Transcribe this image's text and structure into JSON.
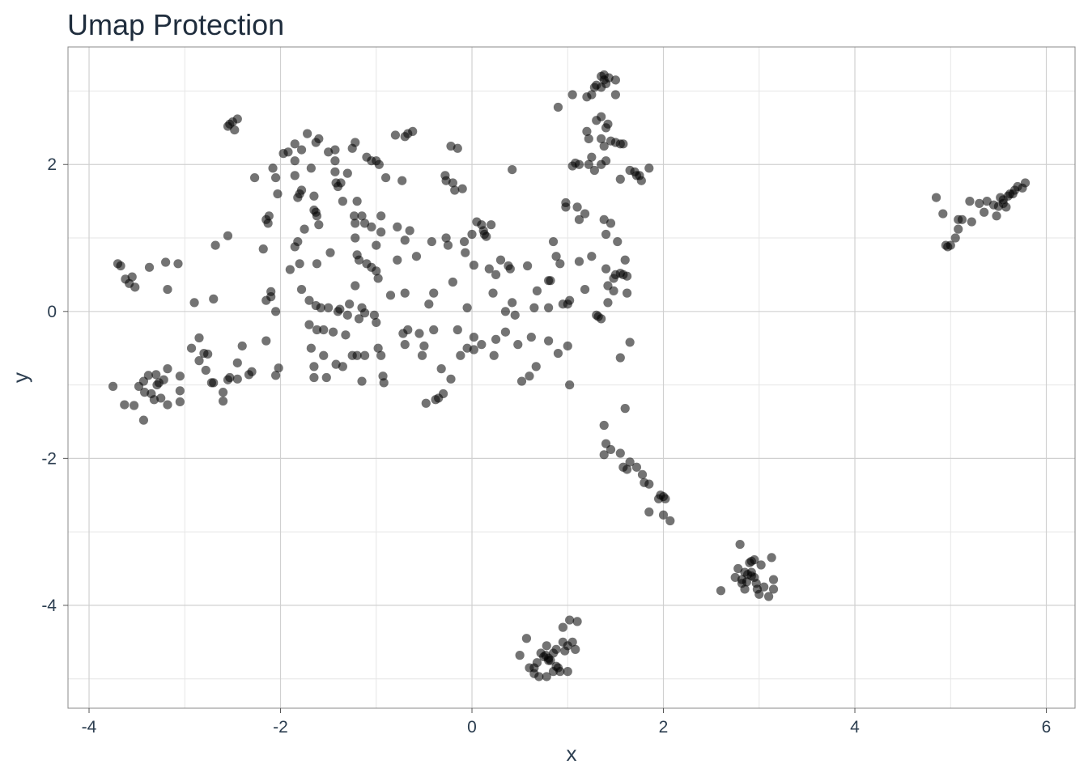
{
  "chart_data": {
    "type": "scatter",
    "title": "Umap Protection",
    "xlabel": "x",
    "ylabel": "y",
    "xlim": [
      -4.22,
      6.3
    ],
    "ylim": [
      -5.4,
      3.6
    ],
    "xticks": [
      -4,
      -2,
      0,
      2,
      4,
      6
    ],
    "yticks": [
      -4,
      -2,
      0,
      2
    ],
    "grid": true,
    "point_color": "#000000",
    "point_opacity": 0.55,
    "points": [
      [
        -2.53,
        2.55
      ],
      [
        -2.5,
        2.58
      ],
      [
        -2.45,
        2.62
      ],
      [
        -2.48,
        2.47
      ],
      [
        -2.55,
        2.52
      ],
      [
        -3.7,
        0.65
      ],
      [
        -3.67,
        0.62
      ],
      [
        -3.62,
        0.44
      ],
      [
        -3.55,
        0.47
      ],
      [
        -3.58,
        0.38
      ],
      [
        -3.52,
        0.33
      ],
      [
        -3.37,
        0.6
      ],
      [
        -3.2,
        0.67
      ],
      [
        -3.07,
        0.65
      ],
      [
        -3.18,
        0.3
      ],
      [
        -3.75,
        -1.02
      ],
      [
        -3.63,
        -1.27
      ],
      [
        -3.53,
        -1.28
      ],
      [
        -3.48,
        -1.02
      ],
      [
        -3.43,
        -0.95
      ],
      [
        -3.42,
        -1.1
      ],
      [
        -3.35,
        -1.12
      ],
      [
        -3.32,
        -1.2
      ],
      [
        -3.3,
        -0.86
      ],
      [
        -3.38,
        -0.87
      ],
      [
        -3.25,
        -1.18
      ],
      [
        -3.22,
        -0.93
      ],
      [
        -3.18,
        -0.78
      ],
      [
        -3.18,
        -1.27
      ],
      [
        -3.05,
        -1.08
      ],
      [
        -3.05,
        -1.23
      ],
      [
        -3.05,
        -0.88
      ],
      [
        -3.43,
        -1.48
      ],
      [
        -3.27,
        -0.97
      ],
      [
        -3.29,
        -1.0
      ],
      [
        -2.93,
        -0.5
      ],
      [
        -2.9,
        0.12
      ],
      [
        -2.85,
        -0.36
      ],
      [
        -2.85,
        -0.67
      ],
      [
        -2.8,
        -0.57
      ],
      [
        -2.76,
        -0.58
      ],
      [
        -2.72,
        -0.97
      ],
      [
        -2.7,
        0.17
      ],
      [
        -2.68,
        0.9
      ],
      [
        -2.7,
        -0.97
      ],
      [
        -2.78,
        -0.8
      ],
      [
        -2.6,
        -1.1
      ],
      [
        -2.6,
        -1.22
      ],
      [
        -2.55,
        1.03
      ],
      [
        -2.53,
        -0.9
      ],
      [
        -2.45,
        -0.92
      ],
      [
        -2.45,
        -0.7
      ],
      [
        -2.4,
        -0.47
      ],
      [
        -2.33,
        -0.86
      ],
      [
        -2.3,
        -0.82
      ],
      [
        -2.55,
        -0.93
      ],
      [
        -2.27,
        1.82
      ],
      [
        -2.18,
        0.85
      ],
      [
        -2.15,
        1.25
      ],
      [
        -2.13,
        1.2
      ],
      [
        -2.12,
        1.3
      ],
      [
        -2.1,
        0.27
      ],
      [
        -2.1,
        0.2
      ],
      [
        -2.15,
        0.15
      ],
      [
        -2.15,
        -0.4
      ],
      [
        -2.05,
        -0.87
      ],
      [
        -2.05,
        0.0
      ],
      [
        -2.02,
        -0.77
      ],
      [
        -2.03,
        1.6
      ],
      [
        -2.05,
        1.82
      ],
      [
        -2.08,
        1.95
      ],
      [
        -1.97,
        2.15
      ],
      [
        -1.92,
        2.17
      ],
      [
        -1.85,
        2.28
      ],
      [
        -1.85,
        2.05
      ],
      [
        -1.85,
        1.85
      ],
      [
        -1.82,
        1.55
      ],
      [
        -1.8,
        1.6
      ],
      [
        -1.78,
        1.65
      ],
      [
        -1.82,
        0.95
      ],
      [
        -1.85,
        0.88
      ],
      [
        -1.75,
        1.12
      ],
      [
        -1.8,
        0.65
      ],
      [
        -1.9,
        0.57
      ],
      [
        -1.78,
        0.3
      ],
      [
        -1.78,
        2.2
      ],
      [
        -1.72,
        2.42
      ],
      [
        -1.68,
        1.95
      ],
      [
        -1.65,
        1.57
      ],
      [
        -1.65,
        1.38
      ],
      [
        -1.62,
        1.3
      ],
      [
        -1.63,
        1.35
      ],
      [
        -1.6,
        1.18
      ],
      [
        -1.62,
        0.65
      ],
      [
        -1.7,
        0.15
      ],
      [
        -1.63,
        0.08
      ],
      [
        -1.58,
        0.05
      ],
      [
        -1.7,
        -0.18
      ],
      [
        -1.62,
        -0.25
      ],
      [
        -1.55,
        -0.25
      ],
      [
        -1.68,
        -0.5
      ],
      [
        -1.65,
        -0.75
      ],
      [
        -1.65,
        -0.9
      ],
      [
        -1.55,
        -0.6
      ],
      [
        -1.52,
        -0.9
      ],
      [
        -1.6,
        2.35
      ],
      [
        -1.63,
        2.3
      ],
      [
        -1.5,
        2.17
      ],
      [
        -1.43,
        2.2
      ],
      [
        -1.43,
        2.05
      ],
      [
        -1.43,
        1.9
      ],
      [
        -1.42,
        1.75
      ],
      [
        -1.4,
        1.7
      ],
      [
        -1.37,
        1.75
      ],
      [
        -1.35,
        1.5
      ],
      [
        -1.3,
        1.88
      ],
      [
        -1.48,
        0.8
      ],
      [
        -1.5,
        0.05
      ],
      [
        -1.45,
        -0.28
      ],
      [
        -1.42,
        -0.72
      ],
      [
        -1.38,
        0.03
      ],
      [
        -1.4,
        0.0
      ],
      [
        -1.35,
        -0.75
      ],
      [
        -1.32,
        -0.32
      ],
      [
        -1.3,
        -0.05
      ],
      [
        -1.28,
        0.1
      ],
      [
        -1.25,
        2.22
      ],
      [
        -1.22,
        2.3
      ],
      [
        -1.23,
        1.3
      ],
      [
        -1.22,
        1.2
      ],
      [
        -1.2,
        1.5
      ],
      [
        -1.22,
        1.0
      ],
      [
        -1.2,
        0.77
      ],
      [
        -1.18,
        0.7
      ],
      [
        -1.22,
        0.35
      ],
      [
        -1.2,
        -0.6
      ],
      [
        -1.25,
        -0.6
      ],
      [
        -1.18,
        -0.1
      ],
      [
        -1.15,
        0.05
      ],
      [
        -1.15,
        1.3
      ],
      [
        -1.12,
        1.2
      ],
      [
        -1.1,
        2.1
      ],
      [
        -1.05,
        2.05
      ],
      [
        -1.1,
        0.65
      ],
      [
        -1.05,
        0.6
      ],
      [
        -1.12,
        -0.02
      ],
      [
        -1.12,
        -0.6
      ],
      [
        -1.15,
        -0.95
      ],
      [
        -1.0,
        2.05
      ],
      [
        -0.97,
        2.0
      ],
      [
        -0.9,
        1.82
      ],
      [
        -1.05,
        1.15
      ],
      [
        -0.95,
        1.08
      ],
      [
        -1.0,
        0.9
      ],
      [
        -1.0,
        0.55
      ],
      [
        -0.98,
        0.45
      ],
      [
        -1.02,
        -0.05
      ],
      [
        -1.0,
        -0.15
      ],
      [
        -0.98,
        -0.5
      ],
      [
        -0.95,
        -0.6
      ],
      [
        -0.93,
        -0.88
      ],
      [
        -0.92,
        -0.97
      ],
      [
        -0.95,
        1.3
      ],
      [
        -0.8,
        2.4
      ],
      [
        -0.78,
        1.15
      ],
      [
        -0.78,
        0.7
      ],
      [
        -0.85,
        0.22
      ],
      [
        -0.7,
        2.38
      ],
      [
        -0.67,
        2.42
      ],
      [
        -0.62,
        2.45
      ],
      [
        -0.73,
        1.78
      ],
      [
        -0.7,
        0.97
      ],
      [
        -0.7,
        0.25
      ],
      [
        -0.67,
        -0.25
      ],
      [
        -0.72,
        -0.3
      ],
      [
        -0.7,
        -0.45
      ],
      [
        -0.65,
        1.1
      ],
      [
        -0.58,
        0.75
      ],
      [
        -0.55,
        -0.3
      ],
      [
        -0.52,
        -0.6
      ],
      [
        -0.5,
        -0.47
      ],
      [
        -0.48,
        -1.25
      ],
      [
        -0.45,
        0.1
      ],
      [
        -0.42,
        0.95
      ],
      [
        -0.4,
        0.25
      ],
      [
        -0.4,
        -0.25
      ],
      [
        -0.38,
        -1.2
      ],
      [
        -0.35,
        -1.18
      ],
      [
        -0.32,
        -0.78
      ],
      [
        -0.3,
        -1.12
      ],
      [
        -0.28,
        1.85
      ],
      [
        -0.27,
        1.78
      ],
      [
        -0.27,
        1.0
      ],
      [
        -0.25,
        0.9
      ],
      [
        -0.22,
        2.25
      ],
      [
        -0.2,
        1.75
      ],
      [
        -0.18,
        1.65
      ],
      [
        -0.15,
        2.22
      ],
      [
        -0.2,
        0.4
      ],
      [
        -0.22,
        -0.92
      ],
      [
        -0.15,
        -0.25
      ],
      [
        -0.12,
        -0.6
      ],
      [
        -0.05,
        0.05
      ],
      [
        -0.07,
        0.8
      ],
      [
        -0.08,
        0.95
      ],
      [
        -0.05,
        -0.5
      ],
      [
        -0.1,
        1.67
      ],
      [
        0.0,
        1.05
      ],
      [
        0.02,
        0.63
      ],
      [
        0.02,
        -0.35
      ],
      [
        0.02,
        -0.52
      ],
      [
        0.05,
        1.22
      ],
      [
        0.1,
        1.18
      ],
      [
        0.1,
        -0.45
      ],
      [
        0.13,
        1.05
      ],
      [
        0.15,
        1.02
      ],
      [
        0.12,
        1.1
      ],
      [
        0.18,
        0.58
      ],
      [
        0.2,
        1.18
      ],
      [
        0.22,
        0.25
      ],
      [
        0.25,
        0.5
      ],
      [
        0.23,
        -0.6
      ],
      [
        0.25,
        -0.38
      ],
      [
        0.3,
        0.7
      ],
      [
        0.35,
        0.0
      ],
      [
        0.35,
        -0.28
      ],
      [
        0.38,
        0.62
      ],
      [
        0.4,
        0.58
      ],
      [
        0.42,
        0.12
      ],
      [
        0.42,
        1.93
      ],
      [
        0.45,
        -0.05
      ],
      [
        0.48,
        -0.45
      ],
      [
        0.52,
        -0.95
      ],
      [
        0.58,
        0.62
      ],
      [
        0.6,
        -0.88
      ],
      [
        0.62,
        -0.35
      ],
      [
        0.65,
        0.05
      ],
      [
        0.67,
        -0.75
      ],
      [
        0.68,
        0.28
      ],
      [
        0.8,
        0.42
      ],
      [
        0.82,
        0.42
      ],
      [
        0.8,
        0.05
      ],
      [
        0.8,
        -0.4
      ],
      [
        0.85,
        0.95
      ],
      [
        0.88,
        0.75
      ],
      [
        0.9,
        -0.57
      ],
      [
        0.92,
        0.65
      ],
      [
        0.95,
        0.1
      ],
      [
        0.98,
        1.42
      ],
      [
        0.98,
        1.48
      ],
      [
        1.0,
        0.1
      ],
      [
        1.02,
        0.15
      ],
      [
        1.0,
        -0.47
      ],
      [
        1.02,
        -1.0
      ],
      [
        1.05,
        1.98
      ],
      [
        1.08,
        2.02
      ],
      [
        1.1,
        1.42
      ],
      [
        1.12,
        0.68
      ],
      [
        1.12,
        2.0
      ],
      [
        1.12,
        1.25
      ],
      [
        1.18,
        1.33
      ],
      [
        1.18,
        0.3
      ],
      [
        1.2,
        2.45
      ],
      [
        1.22,
        2.0
      ],
      [
        1.25,
        2.1
      ],
      [
        1.22,
        2.35
      ],
      [
        0.9,
        2.78
      ],
      [
        1.05,
        2.95
      ],
      [
        1.2,
        2.92
      ],
      [
        1.25,
        2.95
      ],
      [
        1.28,
        3.05
      ],
      [
        1.3,
        3.08
      ],
      [
        1.35,
        3.05
      ],
      [
        1.38,
        3.15
      ],
      [
        1.4,
        3.1
      ],
      [
        1.43,
        3.18
      ],
      [
        1.38,
        3.22
      ],
      [
        1.35,
        3.2
      ],
      [
        1.5,
        2.95
      ],
      [
        1.5,
        3.15
      ],
      [
        1.3,
        2.6
      ],
      [
        1.35,
        2.65
      ],
      [
        1.4,
        2.5
      ],
      [
        1.42,
        2.55
      ],
      [
        1.45,
        2.32
      ],
      [
        1.5,
        2.3
      ],
      [
        1.55,
        2.28
      ],
      [
        1.58,
        2.28
      ],
      [
        1.35,
        2.35
      ],
      [
        1.38,
        2.25
      ],
      [
        1.4,
        2.05
      ],
      [
        1.35,
        2.0
      ],
      [
        1.65,
        1.92
      ],
      [
        1.7,
        1.9
      ],
      [
        1.72,
        1.85
      ],
      [
        1.75,
        1.85
      ],
      [
        1.77,
        1.78
      ],
      [
        1.85,
        1.95
      ],
      [
        1.55,
        1.8
      ],
      [
        1.28,
        1.92
      ],
      [
        1.25,
        0.75
      ],
      [
        1.3,
        -0.05
      ],
      [
        1.32,
        -0.07
      ],
      [
        1.35,
        -0.1
      ],
      [
        1.38,
        1.25
      ],
      [
        1.4,
        1.05
      ],
      [
        1.42,
        0.35
      ],
      [
        1.42,
        0.12
      ],
      [
        1.45,
        1.2
      ],
      [
        1.48,
        0.45
      ],
      [
        1.5,
        0.5
      ],
      [
        1.52,
        0.95
      ],
      [
        1.55,
        0.52
      ],
      [
        1.58,
        0.5
      ],
      [
        1.55,
        -0.63
      ],
      [
        1.6,
        0.7
      ],
      [
        1.62,
        0.48
      ],
      [
        1.62,
        0.25
      ],
      [
        1.65,
        -0.42
      ],
      [
        1.48,
        0.28
      ],
      [
        1.4,
        0.58
      ],
      [
        1.38,
        -1.55
      ],
      [
        1.4,
        -1.8
      ],
      [
        1.38,
        -1.95
      ],
      [
        1.45,
        -1.88
      ],
      [
        1.55,
        -1.93
      ],
      [
        1.58,
        -2.12
      ],
      [
        1.6,
        -1.32
      ],
      [
        1.62,
        -2.15
      ],
      [
        1.65,
        -2.05
      ],
      [
        1.72,
        -2.12
      ],
      [
        1.78,
        -2.22
      ],
      [
        1.8,
        -2.33
      ],
      [
        1.85,
        -2.35
      ],
      [
        1.85,
        -2.73
      ],
      [
        1.95,
        -2.55
      ],
      [
        1.97,
        -2.5
      ],
      [
        2.0,
        -2.52
      ],
      [
        2.02,
        -2.55
      ],
      [
        2.0,
        -2.77
      ],
      [
        2.07,
        -2.85
      ],
      [
        2.6,
        -3.8
      ],
      [
        2.75,
        -3.62
      ],
      [
        2.78,
        -3.5
      ],
      [
        2.8,
        -3.17
      ],
      [
        2.82,
        -3.65
      ],
      [
        2.85,
        -3.55
      ],
      [
        2.87,
        -3.68
      ],
      [
        2.88,
        -3.58
      ],
      [
        2.9,
        -3.42
      ],
      [
        2.92,
        -3.4
      ],
      [
        2.92,
        -3.6
      ],
      [
        2.95,
        -3.62
      ],
      [
        2.97,
        -3.7
      ],
      [
        2.98,
        -3.78
      ],
      [
        3.0,
        -3.85
      ],
      [
        3.02,
        -3.45
      ],
      [
        3.05,
        -3.75
      ],
      [
        3.1,
        -3.88
      ],
      [
        3.15,
        -3.65
      ],
      [
        3.15,
        -3.78
      ],
      [
        3.13,
        -3.35
      ],
      [
        2.85,
        -3.78
      ],
      [
        2.92,
        -3.55
      ],
      [
        2.95,
        -3.38
      ],
      [
        2.82,
        -3.7
      ],
      [
        0.5,
        -4.68
      ],
      [
        0.57,
        -4.45
      ],
      [
        0.6,
        -4.85
      ],
      [
        0.65,
        -4.93
      ],
      [
        0.68,
        -4.78
      ],
      [
        0.72,
        -4.65
      ],
      [
        0.75,
        -4.7
      ],
      [
        0.77,
        -4.68
      ],
      [
        0.78,
        -4.55
      ],
      [
        0.8,
        -4.72
      ],
      [
        0.82,
        -4.75
      ],
      [
        0.85,
        -4.65
      ],
      [
        0.88,
        -4.6
      ],
      [
        0.88,
        -4.83
      ],
      [
        0.9,
        -4.85
      ],
      [
        0.92,
        -4.9
      ],
      [
        0.95,
        -4.3
      ],
      [
        0.95,
        -4.5
      ],
      [
        0.97,
        -4.62
      ],
      [
        1.0,
        -4.55
      ],
      [
        1.02,
        -4.2
      ],
      [
        1.05,
        -4.5
      ],
      [
        1.08,
        -4.6
      ],
      [
        1.1,
        -4.22
      ],
      [
        1.0,
        -4.9
      ],
      [
        0.85,
        -4.9
      ],
      [
        0.78,
        -4.97
      ],
      [
        0.7,
        -4.97
      ],
      [
        0.65,
        -4.85
      ],
      [
        0.8,
        -4.75
      ],
      [
        4.85,
        1.55
      ],
      [
        4.92,
        1.33
      ],
      [
        4.95,
        0.9
      ],
      [
        4.97,
        0.88
      ],
      [
        5.0,
        0.9
      ],
      [
        5.05,
        1.0
      ],
      [
        5.08,
        1.12
      ],
      [
        5.08,
        1.25
      ],
      [
        5.12,
        1.25
      ],
      [
        5.2,
        1.5
      ],
      [
        5.22,
        1.22
      ],
      [
        5.3,
        1.47
      ],
      [
        5.35,
        1.35
      ],
      [
        5.38,
        1.5
      ],
      [
        5.45,
        1.45
      ],
      [
        5.48,
        1.3
      ],
      [
        5.5,
        1.43
      ],
      [
        5.52,
        1.55
      ],
      [
        5.55,
        1.52
      ],
      [
        5.58,
        1.42
      ],
      [
        5.6,
        1.57
      ],
      [
        5.65,
        1.6
      ],
      [
        5.67,
        1.65
      ],
      [
        5.7,
        1.7
      ],
      [
        5.75,
        1.68
      ],
      [
        5.78,
        1.75
      ],
      [
        5.62,
        1.6
      ],
      [
        5.55,
        1.47
      ]
    ]
  }
}
